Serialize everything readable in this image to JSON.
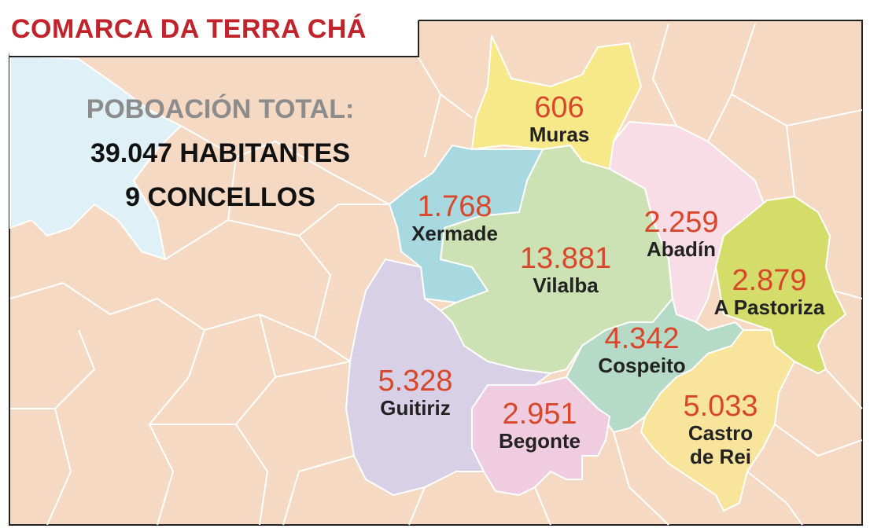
{
  "title": "COMARCA DA TERRA CHÁ",
  "summary": {
    "label": "POBOACIÓN TOTAL:",
    "population": "39.047 HABITANTES",
    "municipalities": "9 CONCELLOS"
  },
  "municipalities": [
    {
      "name": "Muras",
      "population": "606"
    },
    {
      "name": "Xermade",
      "population": "1.768"
    },
    {
      "name": "Vilalba",
      "population": "13.881"
    },
    {
      "name": "Abadín",
      "population": "2.259"
    },
    {
      "name": "A Pastoriza",
      "population": "2.879"
    },
    {
      "name": "Cospeito",
      "population": "4.342"
    },
    {
      "name": "Guitiriz",
      "population": "5.328"
    },
    {
      "name": "Begonte",
      "population": "2.951"
    },
    {
      "name": "Castro de Rei",
      "population": "5.033"
    }
  ]
}
